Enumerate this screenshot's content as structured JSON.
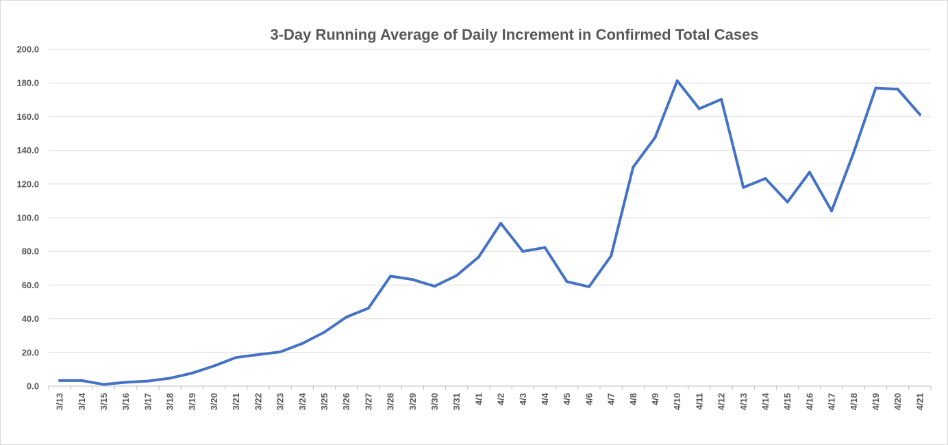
{
  "chart_data": {
    "type": "line",
    "title": "3-Day Running Average of Daily Increment in Confirmed Total  Cases",
    "xlabel": "",
    "ylabel": "",
    "ylim": [
      0,
      200
    ],
    "y_ticks": [
      "0.0",
      "20.0",
      "40.0",
      "60.0",
      "80.0",
      "100.0",
      "120.0",
      "140.0",
      "160.0",
      "180.0",
      "200.0"
    ],
    "grid": true,
    "legend": "none",
    "line_color": "#4472c4",
    "categories": [
      "3/13",
      "3/14",
      "3/15",
      "3/16",
      "3/17",
      "3/18",
      "3/19",
      "3/20",
      "3/21",
      "3/22",
      "3/23",
      "3/24",
      "3/25",
      "3/26",
      "3/27",
      "3/28",
      "3/29",
      "3/30",
      "3/31",
      "4/1",
      "4/2",
      "4/3",
      "4/4",
      "4/5",
      "4/6",
      "4/7",
      "4/8",
      "4/9",
      "4/10",
      "4/11",
      "4/12",
      "4/13",
      "4/14",
      "4/15",
      "4/16",
      "4/17",
      "4/18",
      "4/19",
      "4/20",
      "4/21"
    ],
    "series": [
      {
        "values": [
          3.3,
          3.3,
          1.0,
          2.3,
          3.0,
          4.7,
          7.7,
          12.0,
          17.0,
          18.7,
          20.3,
          25.3,
          32.0,
          41.0,
          46.3,
          65.3,
          63.3,
          59.3,
          65.7,
          76.7,
          96.7,
          80.0,
          82.3,
          62.0,
          59.0,
          77.3,
          130.0,
          147.7,
          181.3,
          164.7,
          170.3,
          118.0,
          123.3,
          109.3,
          127.0,
          104.0,
          138.7,
          177.0,
          176.3,
          161.3
        ]
      }
    ]
  }
}
